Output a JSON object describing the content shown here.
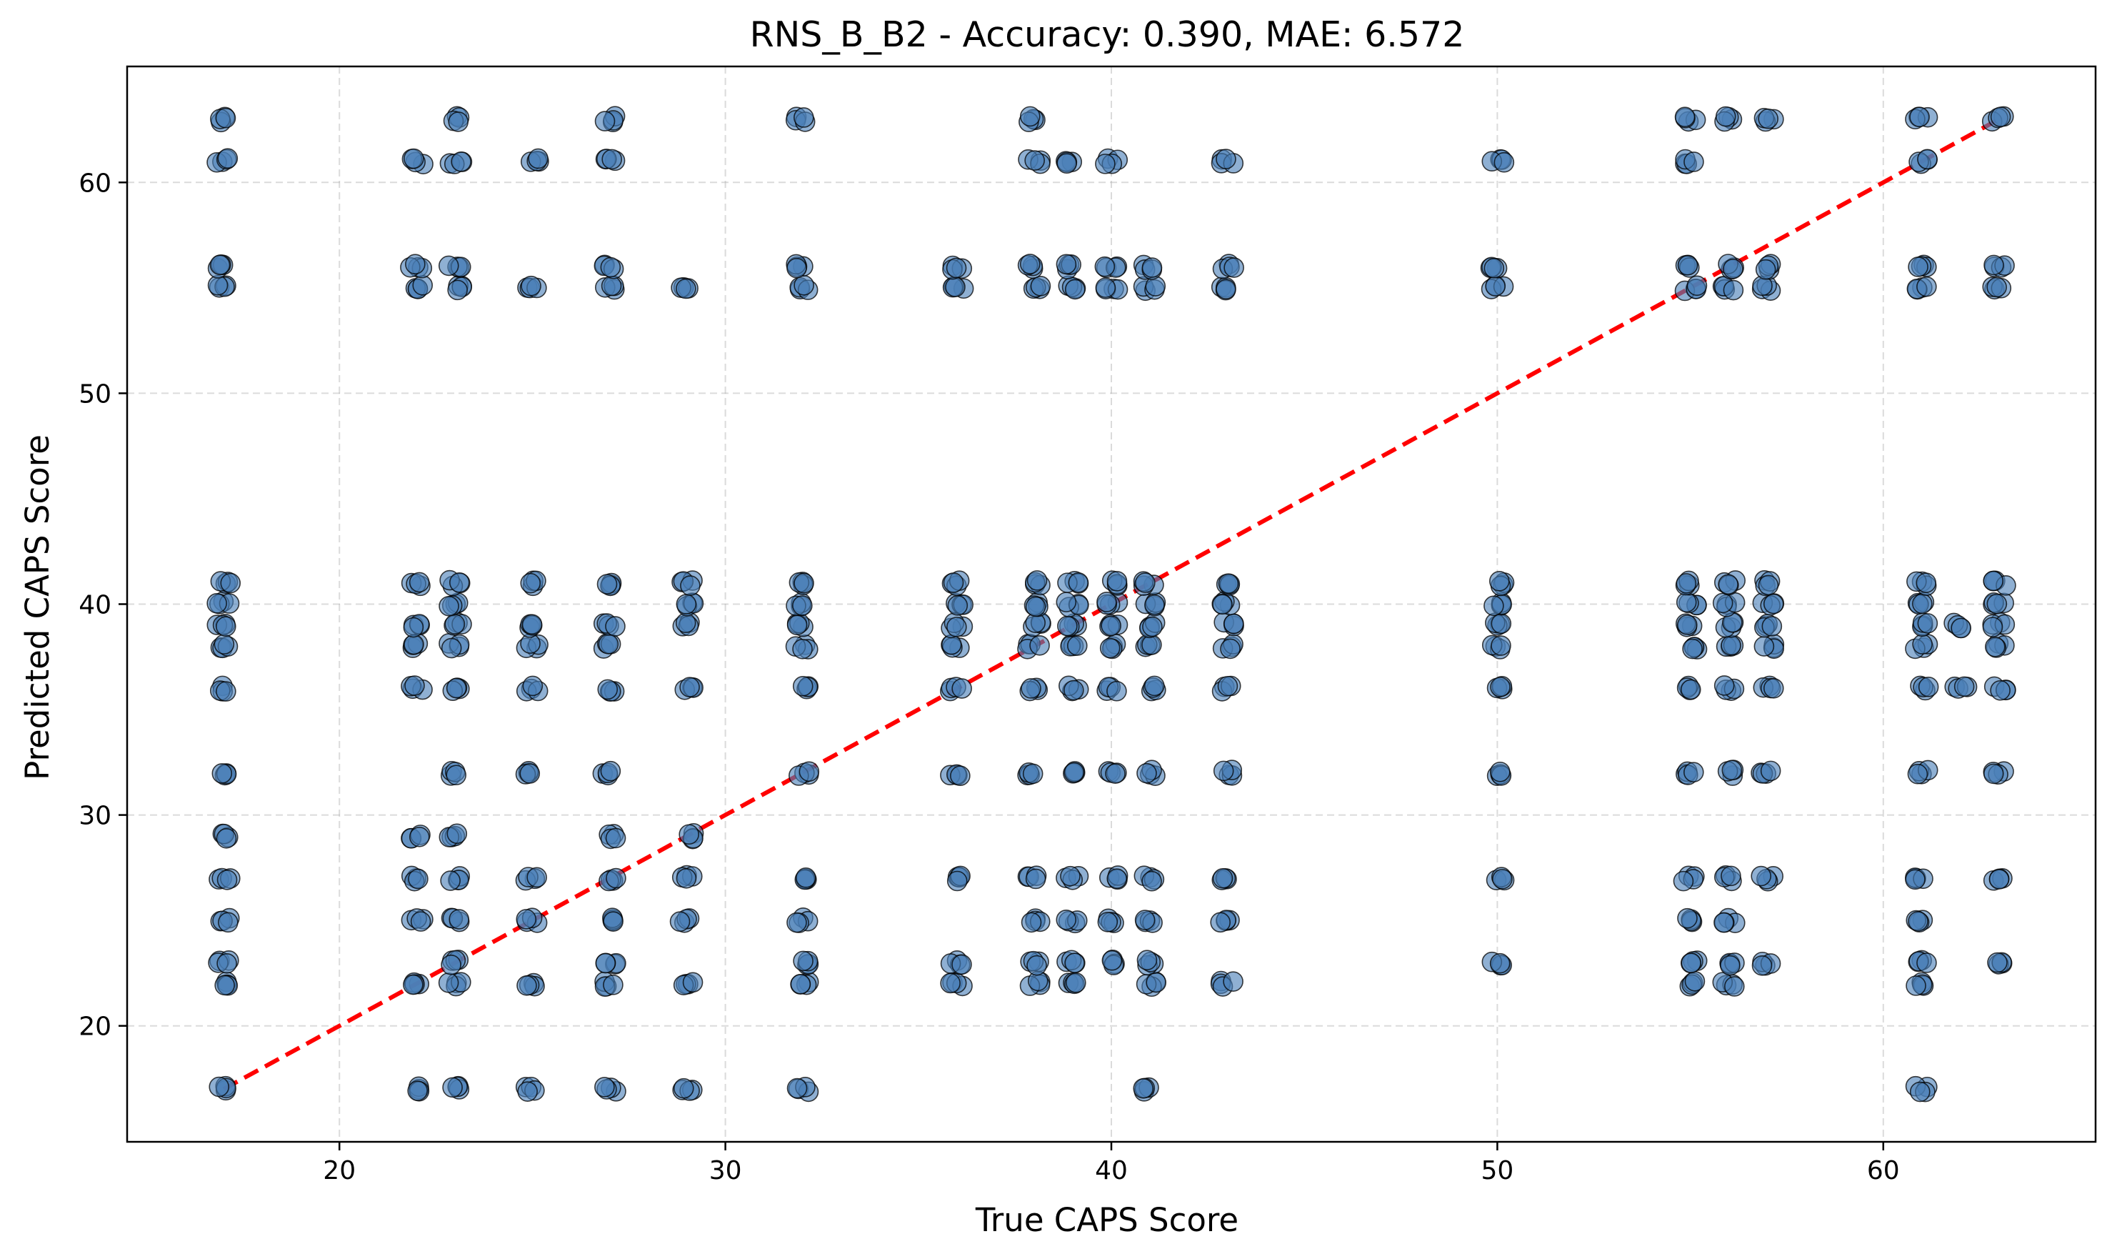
{
  "chart_data": {
    "type": "scatter",
    "title": "RNS_B_B2 - Accuracy: 0.390, MAE: 6.572",
    "xlabel": "True CAPS Score",
    "ylabel": "Predicted CAPS Score",
    "xlim": [
      14.5,
      65.5
    ],
    "ylim": [
      14.5,
      65.5
    ],
    "xticks": [
      20,
      30,
      40,
      50,
      60
    ],
    "yticks": [
      20,
      30,
      40,
      50,
      60
    ],
    "grid": true,
    "colors": {
      "point": "#4a80b8",
      "diagonal": "#ff0000"
    },
    "reference_line": {
      "style": "dashed",
      "from": [
        17,
        17
      ],
      "to": [
        63,
        63
      ]
    },
    "groups": [
      {
        "x": 17,
        "y": [
          17,
          22,
          23,
          25,
          27,
          29,
          32,
          36,
          38,
          39,
          40,
          41,
          55,
          56,
          61,
          63
        ]
      },
      {
        "x": 22,
        "y": [
          17,
          22,
          25,
          27,
          29,
          36,
          38,
          39,
          41,
          55,
          56,
          61
        ]
      },
      {
        "x": 23,
        "y": [
          17,
          22,
          23,
          25,
          27,
          29,
          32,
          36,
          38,
          39,
          40,
          41,
          55,
          56,
          61,
          63
        ]
      },
      {
        "x": 25,
        "y": [
          17,
          22,
          25,
          27,
          32,
          36,
          38,
          39,
          41,
          55,
          61
        ]
      },
      {
        "x": 27,
        "y": [
          17,
          22,
          23,
          25,
          27,
          29,
          32,
          36,
          38,
          39,
          41,
          55,
          56,
          61,
          63
        ]
      },
      {
        "x": 29,
        "y": [
          17,
          22,
          25,
          27,
          29,
          36,
          39,
          40,
          41,
          55
        ]
      },
      {
        "x": 32,
        "y": [
          17,
          22,
          23,
          25,
          27,
          32,
          36,
          38,
          39,
          40,
          41,
          55,
          56,
          63
        ]
      },
      {
        "x": 36,
        "y": [
          22,
          23,
          27,
          32,
          36,
          38,
          39,
          40,
          41,
          55,
          56
        ]
      },
      {
        "x": 38,
        "y": [
          22,
          23,
          25,
          27,
          32,
          36,
          38,
          39,
          40,
          41,
          55,
          56,
          61,
          63
        ]
      },
      {
        "x": 39,
        "y": [
          22,
          23,
          25,
          27,
          32,
          36,
          38,
          39,
          40,
          41,
          55,
          56,
          61
        ]
      },
      {
        "x": 40,
        "y": [
          23,
          25,
          27,
          32,
          36,
          38,
          39,
          40,
          41,
          55,
          56,
          61
        ]
      },
      {
        "x": 41,
        "y": [
          17,
          22,
          23,
          25,
          27,
          32,
          36,
          38,
          39,
          40,
          41,
          55,
          56
        ]
      },
      {
        "x": 43,
        "y": [
          22,
          25,
          27,
          32,
          36,
          38,
          39,
          40,
          41,
          55,
          56,
          61
        ]
      },
      {
        "x": 50,
        "y": [
          23,
          27,
          32,
          36,
          38,
          39,
          40,
          41,
          55,
          56,
          61
        ]
      },
      {
        "x": 55,
        "y": [
          22,
          23,
          25,
          27,
          32,
          36,
          38,
          39,
          40,
          41,
          55,
          56,
          61,
          63
        ]
      },
      {
        "x": 56,
        "y": [
          22,
          23,
          25,
          27,
          32,
          36,
          38,
          39,
          40,
          41,
          55,
          56,
          63
        ]
      },
      {
        "x": 57,
        "y": [
          23,
          27,
          32,
          36,
          38,
          39,
          40,
          41,
          55,
          56,
          63
        ]
      },
      {
        "x": 61,
        "y": [
          17,
          22,
          23,
          25,
          27,
          32,
          36,
          38,
          39,
          40,
          41,
          55,
          56,
          61,
          63
        ]
      },
      {
        "x": 62,
        "y": [
          36,
          39
        ]
      },
      {
        "x": 63,
        "y": [
          23,
          27,
          32,
          36,
          38,
          39,
          40,
          41,
          55,
          56,
          63
        ]
      }
    ]
  }
}
